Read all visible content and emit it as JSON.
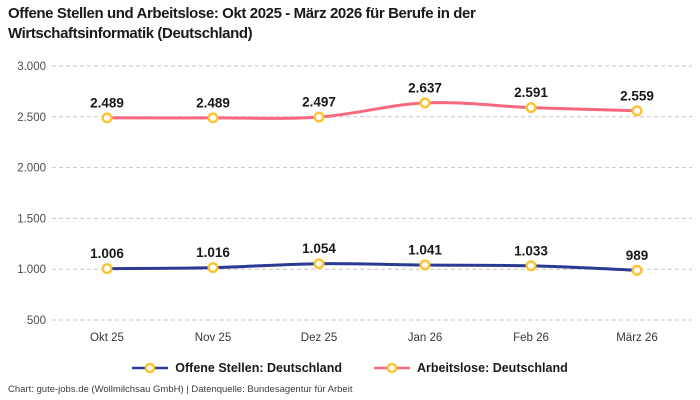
{
  "title": {
    "line1": "Offene Stellen und Arbeitslose: Okt 2025 - März 2026 für Berufe in der",
    "line2": "Wirtschaftsinformatik (Deutschland)"
  },
  "chart_data": {
    "type": "line",
    "title": "Offene Stellen und Arbeitslose: Okt 2025 - März 2026 für Berufe in der Wirtschaftsinformatik (Deutschland)",
    "categories": [
      "Okt 25",
      "Nov 25",
      "Dez 25",
      "Jan 26",
      "Feb 26",
      "März 26"
    ],
    "series": [
      {
        "name": "Offene Stellen: Deutschland",
        "color": "#2b3a92",
        "values": [
          1006,
          1016,
          1054,
          1041,
          1033,
          989
        ],
        "labels": [
          "1.006",
          "1.016",
          "1.054",
          "1.041",
          "1.033",
          "989"
        ]
      },
      {
        "name": "Arbeitslose: Deutschland",
        "color": "#f7697f",
        "values": [
          2489,
          2489,
          2497,
          2637,
          2591,
          2559
        ],
        "labels": [
          "2.489",
          "2.489",
          "2.497",
          "2.637",
          "2.591",
          "2.559"
        ]
      }
    ],
    "marker_color": "#fcc331",
    "marker_fill": "#ffffff",
    "gridline_color": "#c6c6c6",
    "grid": "dashed-horizontal",
    "legend_position": "bottom",
    "ylim": [
      500,
      3000
    ],
    "yticks": [
      {
        "value": 500,
        "label": "500"
      },
      {
        "value": 1000,
        "label": "1.000"
      },
      {
        "value": 1500,
        "label": "1.500"
      },
      {
        "value": 2000,
        "label": "2.000"
      },
      {
        "value": 2500,
        "label": "2.500"
      },
      {
        "value": 3000,
        "label": "3.000"
      }
    ]
  },
  "footer": {
    "text": "Chart: gute-jobs.de (Wollmilchsau GmbH) | Datenquelle: Bundesagentur für Arbeit"
  }
}
